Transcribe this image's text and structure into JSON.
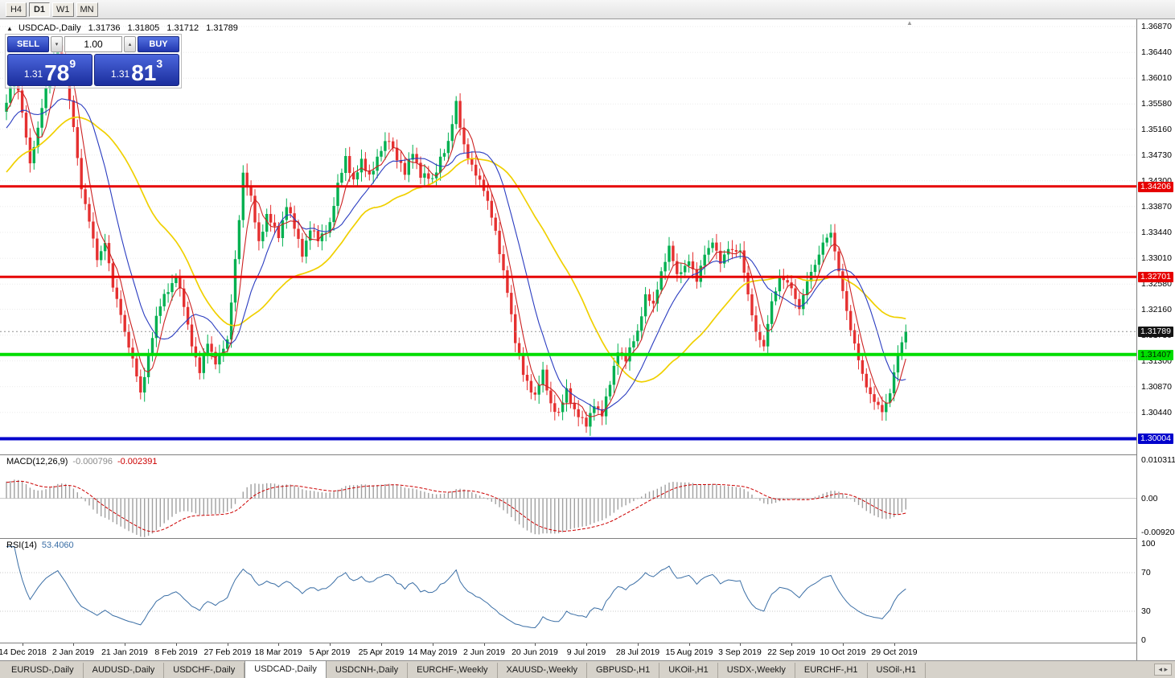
{
  "toolbar": {
    "timeframes": [
      "H4",
      "D1",
      "W1",
      "MN"
    ],
    "active": "D1"
  },
  "chart": {
    "symbol_period": "USDCAD-,Daily",
    "open": "1.31736",
    "high": "1.31805",
    "low": "1.31712",
    "close": "1.31789"
  },
  "trade": {
    "sell_label": "SELL",
    "buy_label": "BUY",
    "volume": "1.00",
    "sell_small": "1.31",
    "sell_big": "78",
    "sell_sup": "9",
    "buy_small": "1.31",
    "buy_big": "81",
    "buy_sup": "3"
  },
  "current_price": {
    "label": "1.31789",
    "price": 1.31789
  },
  "levels": [
    {
      "label": "1.34206",
      "price": 1.34206,
      "color": "#e60000",
      "text_color": "#ffffff",
      "thickness": 3
    },
    {
      "label": "1.32701",
      "price": 1.32701,
      "color": "#e60000",
      "text_color": "#ffffff",
      "thickness": 3
    },
    {
      "label": "1.31407",
      "price": 1.31407,
      "color": "#00dd00",
      "text_color": "#002200",
      "thickness": 4
    },
    {
      "label": "1.30004",
      "price": 1.30004,
      "color": "#0000cc",
      "text_color": "#ffffff",
      "thickness": 4
    }
  ],
  "price_scale": {
    "labels": [
      "1.36870",
      "1.36440",
      "1.36010",
      "1.35580",
      "1.35160",
      "1.34730",
      "1.34300",
      "1.33870",
      "1.33440",
      "1.33010",
      "1.32580",
      "1.32160",
      "1.31730",
      "1.31300",
      "1.30870",
      "1.30440",
      "1.30010"
    ]
  },
  "macd": {
    "name": "MACD(12,26,9)",
    "main": "-0.000796",
    "signal": "-0.002391",
    "scale_top": "0.010311",
    "scale_mid": "0.00",
    "scale_bottom": "-0.009203"
  },
  "rsi": {
    "name": "RSI(14)",
    "value": "53.4060",
    "scale_labels": [
      "100",
      "70",
      "30",
      "0"
    ],
    "guide_levels": [
      70,
      30
    ]
  },
  "dates": [
    "14 Dec 2018",
    "2 Jan 2019",
    "21 Jan 2019",
    "8 Feb 2019",
    "27 Feb 2019",
    "18 Mar 2019",
    "5 Apr 2019",
    "25 Apr 2019",
    "14 May 2019",
    "2 Jun 2019",
    "20 Jun 2019",
    "9 Jul 2019",
    "28 Jul 2019",
    "15 Aug 2019",
    "3 Sep 2019",
    "22 Sep 2019",
    "10 Oct 2019",
    "29 Oct 2019"
  ],
  "tabs": [
    {
      "label": "EURUSD-,Daily",
      "active": false
    },
    {
      "label": "AUDUSD-,Daily",
      "active": false
    },
    {
      "label": "USDCHF-,Daily",
      "active": false
    },
    {
      "label": "USDCAD-,Daily",
      "active": true
    },
    {
      "label": "USDCNH-,Daily",
      "active": false
    },
    {
      "label": "EURCHF-,Weekly",
      "active": false
    },
    {
      "label": "XAUUSD-,Weekly",
      "active": false
    },
    {
      "label": "GBPUSD-,H1",
      "active": false
    },
    {
      "label": "UKOil-,H1",
      "active": false
    },
    {
      "label": "USDX-,Weekly",
      "active": false
    },
    {
      "label": "EURCHF-,H1",
      "active": false
    },
    {
      "label": "USOil-,H1",
      "active": false
    }
  ],
  "colors": {
    "up": "#00b050",
    "down": "#e53030",
    "ma_fast": "#cc2222",
    "ma_mid": "#2a3cc0",
    "ma_slow": "#f0d000",
    "rsi": "#3a6ea5",
    "macd_hist": "#a0a0a0",
    "macd_signal": "#cc0000",
    "trade_accent": "#2b44c8",
    "grid": "#ebebeb"
  },
  "chart_data": {
    "type": "candlestick",
    "symbol": "USDCAD",
    "timeframe": "Daily",
    "quote": {
      "open": 1.31736,
      "high": 1.31805,
      "low": 1.31712,
      "close": 1.31789,
      "bid": 1.31789,
      "ask": 1.31813
    },
    "ylim": [
      1.2977,
      1.3694
    ],
    "candle_count": 229,
    "x_label_start_index": 4,
    "x_label_step": 13,
    "horizontal_lines": [
      1.34206,
      1.32701,
      1.31407,
      1.30004
    ],
    "moving_averages": [
      {
        "period": 5,
        "color": "#cc2222",
        "width": 1.1
      },
      {
        "period": 13,
        "color": "#2a3cc0",
        "width": 1.1
      },
      {
        "period": 34,
        "color": "#f0d000",
        "width": 1.7
      }
    ],
    "indicators": [
      {
        "name": "MACD",
        "params": [
          12,
          26,
          9
        ],
        "current_main": -0.000796,
        "current_signal": -0.002391,
        "scale": [
          0.010311,
          0.0,
          -0.009203
        ]
      },
      {
        "name": "RSI",
        "params": [
          14
        ],
        "current": 53.406,
        "scale": [
          0,
          100
        ],
        "guides": [
          30,
          70
        ]
      }
    ],
    "close_anchors": [
      [
        0,
        1.356
      ],
      [
        2,
        1.362
      ],
      [
        4,
        1.354
      ],
      [
        6,
        1.346
      ],
      [
        8,
        1.352
      ],
      [
        10,
        1.358
      ],
      [
        13,
        1.366
      ],
      [
        15,
        1.36
      ],
      [
        17,
        1.352
      ],
      [
        19,
        1.342
      ],
      [
        21,
        1.336
      ],
      [
        23,
        1.33
      ],
      [
        25,
        1.333
      ],
      [
        27,
        1.325
      ],
      [
        29,
        1.321
      ],
      [
        30,
        1.318
      ],
      [
        32,
        1.313
      ],
      [
        34,
        1.3075
      ],
      [
        36,
        1.314
      ],
      [
        38,
        1.32
      ],
      [
        40,
        1.324
      ],
      [
        43,
        1.327
      ],
      [
        45,
        1.322
      ],
      [
        47,
        1.316
      ],
      [
        49,
        1.311
      ],
      [
        51,
        1.316
      ],
      [
        53,
        1.313
      ],
      [
        56,
        1.316
      ],
      [
        58,
        1.33
      ],
      [
        60,
        1.344
      ],
      [
        62,
        1.34
      ],
      [
        64,
        1.333
      ],
      [
        66,
        1.337
      ],
      [
        69,
        1.334
      ],
      [
        71,
        1.339
      ],
      [
        73,
        1.335
      ],
      [
        75,
        1.331
      ],
      [
        77,
        1.335
      ],
      [
        79,
        1.333
      ],
      [
        82,
        1.336
      ],
      [
        84,
        1.342
      ],
      [
        86,
        1.347
      ],
      [
        88,
        1.343
      ],
      [
        90,
        1.346
      ],
      [
        92,
        1.344
      ],
      [
        95,
        1.348
      ],
      [
        97,
        1.35
      ],
      [
        99,
        1.347
      ],
      [
        101,
        1.344
      ],
      [
        103,
        1.348
      ],
      [
        105,
        1.344
      ],
      [
        108,
        1.343
      ],
      [
        110,
        1.347
      ],
      [
        112,
        1.349
      ],
      [
        114,
        1.356
      ],
      [
        116,
        1.349
      ],
      [
        118,
        1.345
      ],
      [
        121,
        1.342
      ],
      [
        123,
        1.337
      ],
      [
        125,
        1.331
      ],
      [
        127,
        1.325
      ],
      [
        129,
        1.316
      ],
      [
        131,
        1.311
      ],
      [
        134,
        1.307
      ],
      [
        136,
        1.311
      ],
      [
        138,
        1.306
      ],
      [
        140,
        1.304
      ],
      [
        142,
        1.308
      ],
      [
        144,
        1.305
      ],
      [
        147,
        1.302
      ],
      [
        149,
        1.306
      ],
      [
        151,
        1.304
      ],
      [
        153,
        1.309
      ],
      [
        155,
        1.315
      ],
      [
        157,
        1.313
      ],
      [
        160,
        1.318
      ],
      [
        162,
        1.324
      ],
      [
        164,
        1.322
      ],
      [
        166,
        1.328
      ],
      [
        168,
        1.332
      ],
      [
        170,
        1.327
      ],
      [
        173,
        1.33
      ],
      [
        175,
        1.326
      ],
      [
        177,
        1.331
      ],
      [
        179,
        1.333
      ],
      [
        181,
        1.329
      ],
      [
        183,
        1.332
      ],
      [
        186,
        1.331
      ],
      [
        188,
        1.324
      ],
      [
        190,
        1.318
      ],
      [
        192,
        1.315
      ],
      [
        194,
        1.323
      ],
      [
        196,
        1.327
      ],
      [
        199,
        1.325
      ],
      [
        201,
        1.322
      ],
      [
        203,
        1.326
      ],
      [
        205,
        1.329
      ],
      [
        207,
        1.333
      ],
      [
        209,
        1.334
      ],
      [
        212,
        1.325
      ],
      [
        214,
        1.318
      ],
      [
        216,
        1.313
      ],
      [
        218,
        1.309
      ],
      [
        220,
        1.306
      ],
      [
        222,
        1.3045
      ],
      [
        224,
        1.308
      ],
      [
        225,
        1.311
      ],
      [
        226,
        1.314
      ],
      [
        227,
        1.316
      ],
      [
        228,
        1.3179
      ]
    ]
  }
}
